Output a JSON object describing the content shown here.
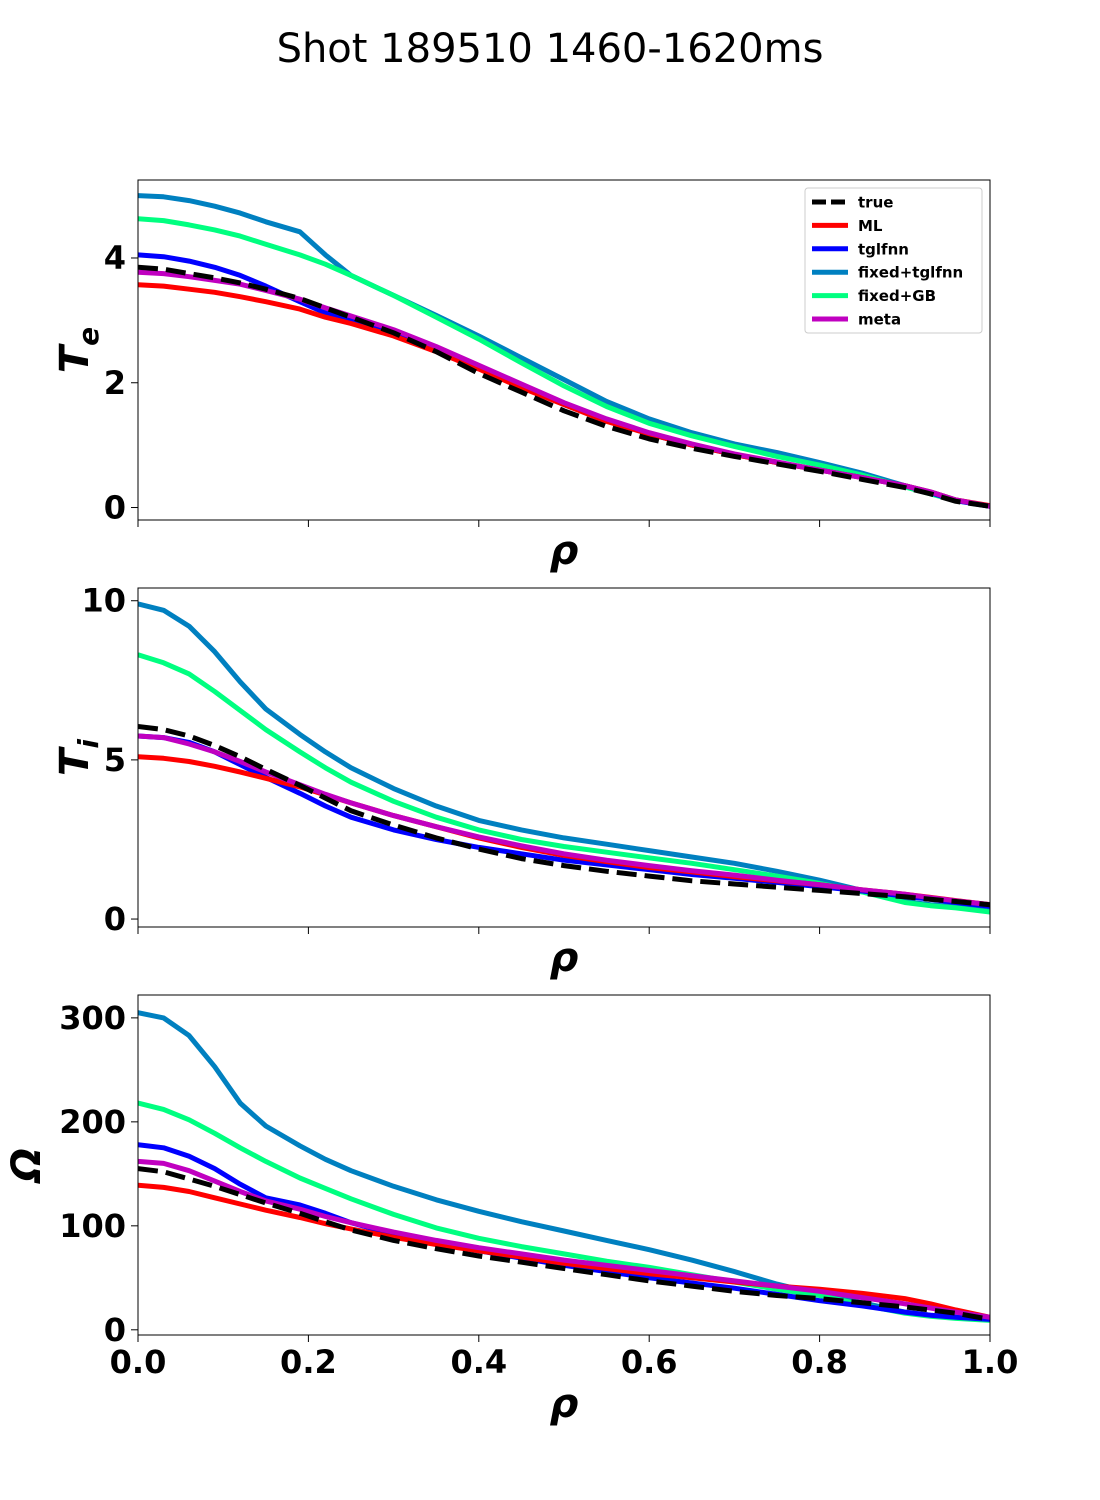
{
  "figure_title": "Shot 189510 1460-1620ms",
  "legend": [
    {
      "label": "true",
      "color": "#000000",
      "dashed": true
    },
    {
      "label": "ML",
      "color": "#ff0000",
      "dashed": false
    },
    {
      "label": "tglfnn",
      "color": "#0000ff",
      "dashed": false
    },
    {
      "label": "fixed+tglfnn",
      "color": "#0080c0",
      "dashed": false
    },
    {
      "label": "fixed+GB",
      "color": "#00ff80",
      "dashed": false
    },
    {
      "label": "meta",
      "color": "#c000c0",
      "dashed": false
    }
  ],
  "chart_data": [
    {
      "type": "line",
      "title": "",
      "xlabel": "ρ",
      "ylabel": "Te",
      "ylabel_main": "T",
      "ylabel_sub": "e",
      "xlim": [
        0,
        1
      ],
      "ylim": [
        -0.2,
        5.25
      ],
      "xticks": [
        0,
        0.2,
        0.4,
        0.6,
        0.8,
        1.0
      ],
      "xtick_labels": [
        "",
        "",
        "",
        "",
        "",
        ""
      ],
      "yticks": [
        0,
        2,
        4
      ],
      "ytick_labels": [
        "0",
        "2",
        "4"
      ],
      "legend_position": "upper right",
      "x": [
        0,
        0.03,
        0.06,
        0.09,
        0.12,
        0.15,
        0.19,
        0.22,
        0.25,
        0.3,
        0.35,
        0.4,
        0.45,
        0.5,
        0.55,
        0.6,
        0.65,
        0.7,
        0.75,
        0.8,
        0.85,
        0.9,
        0.93,
        0.96,
        1.0
      ],
      "series": [
        {
          "name": "true",
          "values": [
            3.85,
            3.82,
            3.75,
            3.68,
            3.6,
            3.5,
            3.35,
            3.2,
            3.05,
            2.8,
            2.5,
            2.15,
            1.85,
            1.55,
            1.3,
            1.1,
            0.95,
            0.82,
            0.7,
            0.58,
            0.45,
            0.32,
            0.22,
            0.1,
            0.02
          ]
        },
        {
          "name": "ML",
          "values": [
            3.57,
            3.55,
            3.5,
            3.45,
            3.38,
            3.3,
            3.18,
            3.05,
            2.95,
            2.75,
            2.5,
            2.22,
            1.92,
            1.65,
            1.38,
            1.18,
            1.0,
            0.85,
            0.72,
            0.6,
            0.48,
            0.35,
            0.25,
            0.12,
            0.03
          ]
        },
        {
          "name": "tglfnn",
          "values": [
            4.05,
            4.02,
            3.95,
            3.85,
            3.72,
            3.55,
            3.3,
            3.12,
            3.0,
            2.8,
            2.55,
            2.25,
            1.95,
            1.65,
            1.4,
            1.18,
            1.0,
            0.85,
            0.72,
            0.6,
            0.48,
            0.35,
            0.24,
            0.11,
            0.02
          ]
        },
        {
          "name": "fixed+tglfnn",
          "values": [
            5.0,
            4.98,
            4.92,
            4.83,
            4.72,
            4.58,
            4.42,
            4.05,
            3.72,
            3.4,
            3.08,
            2.75,
            2.4,
            2.05,
            1.7,
            1.42,
            1.2,
            1.02,
            0.88,
            0.72,
            0.55,
            0.35,
            0.25,
            0.12,
            0.02
          ]
        },
        {
          "name": "fixed+GB",
          "values": [
            4.63,
            4.6,
            4.53,
            4.45,
            4.35,
            4.22,
            4.05,
            3.9,
            3.72,
            3.4,
            3.05,
            2.7,
            2.32,
            1.95,
            1.62,
            1.35,
            1.15,
            0.98,
            0.82,
            0.68,
            0.52,
            0.33,
            0.22,
            0.11,
            0.02
          ]
        },
        {
          "name": "meta",
          "values": [
            3.77,
            3.75,
            3.7,
            3.64,
            3.58,
            3.48,
            3.34,
            3.2,
            3.07,
            2.85,
            2.58,
            2.28,
            1.98,
            1.68,
            1.42,
            1.2,
            1.02,
            0.86,
            0.73,
            0.6,
            0.48,
            0.35,
            0.25,
            0.12,
            0.02
          ]
        }
      ]
    },
    {
      "type": "line",
      "title": "",
      "xlabel": "ρ",
      "ylabel": "Ti",
      "ylabel_main": "T",
      "ylabel_sub": "i",
      "xlim": [
        0,
        1
      ],
      "ylim": [
        -0.25,
        10.4
      ],
      "xticks": [
        0,
        0.2,
        0.4,
        0.6,
        0.8,
        1.0
      ],
      "xtick_labels": [
        "",
        "",
        "",
        "",
        "",
        ""
      ],
      "yticks": [
        0,
        5,
        10
      ],
      "ytick_labels": [
        "0",
        "5",
        "10"
      ],
      "legend_position": "",
      "x": [
        0,
        0.03,
        0.06,
        0.09,
        0.12,
        0.15,
        0.19,
        0.22,
        0.25,
        0.3,
        0.35,
        0.4,
        0.45,
        0.5,
        0.55,
        0.6,
        0.65,
        0.7,
        0.75,
        0.8,
        0.85,
        0.9,
        0.93,
        0.96,
        1.0
      ],
      "series": [
        {
          "name": "true",
          "values": [
            6.05,
            5.95,
            5.75,
            5.45,
            5.1,
            4.7,
            4.2,
            3.8,
            3.4,
            2.95,
            2.55,
            2.2,
            1.9,
            1.68,
            1.5,
            1.35,
            1.2,
            1.1,
            1.0,
            0.9,
            0.8,
            0.7,
            0.62,
            0.55,
            0.45
          ]
        },
        {
          "name": "ML",
          "values": [
            5.1,
            5.05,
            4.95,
            4.8,
            4.62,
            4.42,
            4.15,
            3.9,
            3.65,
            3.25,
            2.9,
            2.55,
            2.25,
            2.0,
            1.8,
            1.62,
            1.48,
            1.33,
            1.2,
            1.08,
            0.92,
            0.78,
            0.68,
            0.58,
            0.45
          ]
        },
        {
          "name": "tglfnn",
          "values": [
            5.75,
            5.7,
            5.55,
            5.25,
            4.85,
            4.45,
            3.95,
            3.55,
            3.2,
            2.8,
            2.5,
            2.25,
            2.05,
            1.85,
            1.7,
            1.55,
            1.4,
            1.28,
            1.15,
            1.02,
            0.88,
            0.72,
            0.62,
            0.52,
            0.4
          ]
        },
        {
          "name": "fixed+tglfnn",
          "values": [
            9.9,
            9.7,
            9.2,
            8.4,
            7.45,
            6.6,
            5.8,
            5.25,
            4.75,
            4.1,
            3.55,
            3.1,
            2.8,
            2.55,
            2.35,
            2.15,
            1.95,
            1.75,
            1.5,
            1.22,
            0.9,
            0.55,
            0.45,
            0.38,
            0.25
          ]
        },
        {
          "name": "fixed+GB",
          "values": [
            8.3,
            8.05,
            7.7,
            7.15,
            6.55,
            5.95,
            5.25,
            4.75,
            4.3,
            3.7,
            3.2,
            2.8,
            2.5,
            2.28,
            2.1,
            1.92,
            1.75,
            1.55,
            1.35,
            1.12,
            0.85,
            0.52,
            0.42,
            0.35,
            0.22
          ]
        },
        {
          "name": "meta",
          "values": [
            5.75,
            5.7,
            5.5,
            5.25,
            4.95,
            4.62,
            4.22,
            3.92,
            3.65,
            3.25,
            2.9,
            2.58,
            2.3,
            2.05,
            1.85,
            1.68,
            1.52,
            1.38,
            1.22,
            1.08,
            0.92,
            0.78,
            0.67,
            0.57,
            0.45
          ]
        }
      ]
    },
    {
      "type": "line",
      "title": "",
      "xlabel": "ρ",
      "ylabel": "Ω",
      "ylabel_main": "Ω",
      "ylabel_sub": "",
      "xlim": [
        0,
        1
      ],
      "ylim": [
        -5,
        322
      ],
      "xticks": [
        0,
        0.2,
        0.4,
        0.6,
        0.8,
        1.0
      ],
      "xtick_labels": [
        "0.0",
        "0.2",
        "0.4",
        "0.6",
        "0.8",
        "1.0"
      ],
      "yticks": [
        0,
        100,
        200,
        300
      ],
      "ytick_labels": [
        "0",
        "100",
        "200",
        "300"
      ],
      "legend_position": "",
      "x": [
        0,
        0.03,
        0.06,
        0.09,
        0.12,
        0.15,
        0.19,
        0.22,
        0.25,
        0.3,
        0.35,
        0.4,
        0.45,
        0.5,
        0.55,
        0.6,
        0.65,
        0.7,
        0.75,
        0.8,
        0.85,
        0.9,
        0.93,
        0.96,
        1.0
      ],
      "series": [
        {
          "name": "true",
          "values": [
            155,
            152,
            145,
            138,
            130,
            122,
            112,
            104,
            96,
            86,
            78,
            71,
            65,
            59,
            53,
            47,
            42,
            37,
            33,
            30,
            26,
            22,
            19,
            16,
            10
          ]
        },
        {
          "name": "ML",
          "values": [
            139,
            137,
            133,
            127,
            121,
            115,
            108,
            102,
            97,
            89,
            82,
            76,
            70,
            64,
            59,
            54,
            50,
            46,
            42,
            39,
            35,
            30,
            25,
            19,
            12
          ]
        },
        {
          "name": "tglfnn",
          "values": [
            178,
            175,
            167,
            155,
            140,
            127,
            120,
            112,
            103,
            92,
            83,
            76,
            69,
            62,
            56,
            50,
            45,
            40,
            34,
            28,
            23,
            17,
            14,
            12,
            10
          ]
        },
        {
          "name": "fixed+tglfnn",
          "values": [
            305,
            300,
            283,
            253,
            218,
            196,
            177,
            164,
            153,
            138,
            125,
            114,
            104,
            95,
            86,
            77,
            67,
            56,
            44,
            34,
            26,
            17,
            14,
            12,
            10
          ]
        },
        {
          "name": "fixed+GB",
          "values": [
            218,
            212,
            202,
            189,
            175,
            162,
            146,
            136,
            126,
            111,
            98,
            88,
            80,
            73,
            66,
            60,
            53,
            46,
            39,
            33,
            24,
            16,
            13,
            11,
            9
          ]
        },
        {
          "name": "meta",
          "values": [
            162,
            160,
            153,
            143,
            133,
            124,
            116,
            109,
            103,
            94,
            86,
            79,
            73,
            67,
            62,
            57,
            52,
            47,
            42,
            37,
            31,
            25,
            21,
            17,
            12
          ]
        }
      ]
    }
  ]
}
